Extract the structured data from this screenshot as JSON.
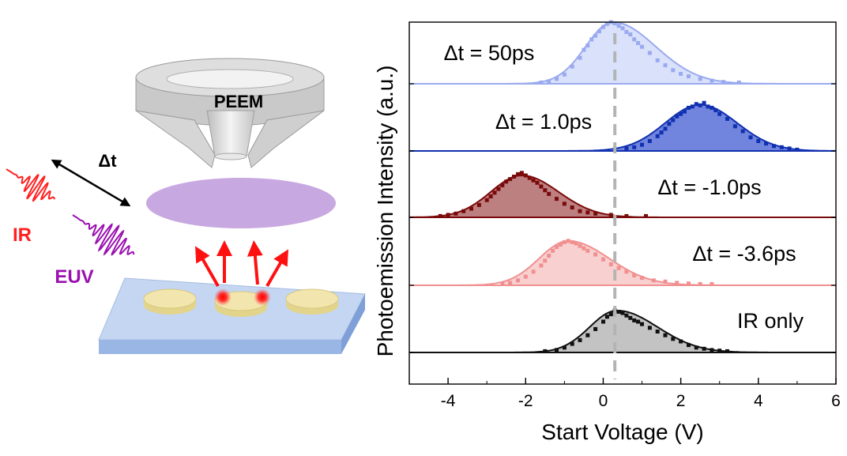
{
  "schematic": {
    "detector_label": "PEEM",
    "delay_label": "Δt",
    "pulse_ir_label": "IR",
    "pulse_euv_label": "EUV",
    "colors": {
      "detector": "#d3d3d3",
      "screen": "#c8a8e0",
      "substrate": "#c0d4f0",
      "disc": "#f0e4a8",
      "ir": "#ff2020",
      "euv": "#9a10b0",
      "arrow": "#ff1010"
    }
  },
  "chart_data": {
    "type": "area",
    "xlabel": "Start Voltage (V)",
    "ylabel": "Photoemission Intensity (a.u.)",
    "xlim": [
      -5,
      6
    ],
    "xticks": [
      -4,
      -2,
      0,
      2,
      4,
      6
    ],
    "reference_line_x": 0.3,
    "grid": false,
    "legend": "none",
    "series": [
      {
        "name": "Δt = 50ps",
        "color": "#9aaaf0",
        "fill": "#d4dcfa",
        "fit": {
          "amplitude": 1.0,
          "center": 0.25,
          "sigma_left": 0.7,
          "sigma_right": 1.1
        },
        "points": [
          [
            -1.6,
            0.02
          ],
          [
            -1.4,
            0.04
          ],
          [
            -1.2,
            0.08
          ],
          [
            -1.0,
            0.15
          ],
          [
            -0.8,
            0.28
          ],
          [
            -0.6,
            0.42
          ],
          [
            -0.5,
            0.55
          ],
          [
            -0.4,
            0.62
          ],
          [
            -0.3,
            0.72
          ],
          [
            -0.2,
            0.78
          ],
          [
            -0.1,
            0.85
          ],
          [
            0.0,
            0.92
          ],
          [
            0.1,
            0.97
          ],
          [
            0.2,
            1.0
          ],
          [
            0.3,
            0.98
          ],
          [
            0.4,
            0.94
          ],
          [
            0.5,
            0.9
          ],
          [
            0.6,
            0.84
          ],
          [
            0.7,
            0.8
          ],
          [
            0.8,
            0.72
          ],
          [
            0.9,
            0.66
          ],
          [
            1.0,
            0.6
          ],
          [
            1.2,
            0.5
          ],
          [
            1.4,
            0.38
          ],
          [
            1.6,
            0.3
          ],
          [
            1.8,
            0.22
          ],
          [
            2.0,
            0.16
          ],
          [
            2.2,
            0.12
          ],
          [
            2.5,
            0.08
          ],
          [
            2.8,
            0.05
          ],
          [
            3.1,
            0.03
          ],
          [
            3.5,
            0.02
          ]
        ]
      },
      {
        "name": "Δt = 1.0ps",
        "color": "#1030b0",
        "fill": "#5870d8",
        "fit": {
          "amplitude": 0.75,
          "center": 2.5,
          "sigma_left": 0.9,
          "sigma_right": 0.95
        },
        "points": [
          [
            0.3,
            0.02
          ],
          [
            0.6,
            0.04
          ],
          [
            0.8,
            0.06
          ],
          [
            1.0,
            0.1
          ],
          [
            1.2,
            0.16
          ],
          [
            1.4,
            0.24
          ],
          [
            1.5,
            0.3
          ],
          [
            1.6,
            0.36
          ],
          [
            1.7,
            0.44
          ],
          [
            1.8,
            0.5
          ],
          [
            1.9,
            0.56
          ],
          [
            2.0,
            0.6
          ],
          [
            2.1,
            0.64
          ],
          [
            2.2,
            0.7
          ],
          [
            2.3,
            0.72
          ],
          [
            2.4,
            0.76
          ],
          [
            2.5,
            0.74
          ],
          [
            2.6,
            0.78
          ],
          [
            2.7,
            0.72
          ],
          [
            2.8,
            0.7
          ],
          [
            2.9,
            0.66
          ],
          [
            3.0,
            0.6
          ],
          [
            3.2,
            0.52
          ],
          [
            3.4,
            0.4
          ],
          [
            3.6,
            0.32
          ],
          [
            3.8,
            0.22
          ],
          [
            4.0,
            0.16
          ],
          [
            4.2,
            0.12
          ],
          [
            4.4,
            0.08
          ],
          [
            4.6,
            0.06
          ],
          [
            4.8,
            0.04
          ],
          [
            5.0,
            0.02
          ]
        ]
      },
      {
        "name": "Δt = -1.0ps",
        "color": "#7a0a0a",
        "fill": "#b06a6a",
        "fit": {
          "amplitude": 0.68,
          "center": -2.1,
          "sigma_left": 0.8,
          "sigma_right": 0.95
        },
        "points": [
          [
            -4.2,
            0.02
          ],
          [
            -4.0,
            0.04
          ],
          [
            -3.8,
            0.06
          ],
          [
            -3.6,
            0.1
          ],
          [
            -3.4,
            0.14
          ],
          [
            -3.2,
            0.2
          ],
          [
            -3.0,
            0.28
          ],
          [
            -2.9,
            0.34
          ],
          [
            -2.8,
            0.4
          ],
          [
            -2.7,
            0.46
          ],
          [
            -2.6,
            0.52
          ],
          [
            -2.5,
            0.58
          ],
          [
            -2.4,
            0.62
          ],
          [
            -2.3,
            0.66
          ],
          [
            -2.2,
            0.7
          ],
          [
            -2.1,
            0.72
          ],
          [
            -2.0,
            0.68
          ],
          [
            -1.9,
            0.64
          ],
          [
            -1.8,
            0.6
          ],
          [
            -1.7,
            0.56
          ],
          [
            -1.6,
            0.5
          ],
          [
            -1.5,
            0.44
          ],
          [
            -1.4,
            0.38
          ],
          [
            -1.2,
            0.3
          ],
          [
            -1.0,
            0.22
          ],
          [
            -0.8,
            0.16
          ],
          [
            -0.6,
            0.1
          ],
          [
            -0.4,
            0.08
          ],
          [
            -0.2,
            0.06
          ],
          [
            0.2,
            0.04
          ],
          [
            0.6,
            0.02
          ],
          [
            1.1,
            0.02
          ]
        ]
      },
      {
        "name": "Δt = -3.6ps",
        "color": "#f09090",
        "fill": "#f8c8c8",
        "fit": {
          "amplitude": 0.72,
          "center": -0.9,
          "sigma_left": 0.75,
          "sigma_right": 1.05
        },
        "points": [
          [
            -2.6,
            0.02
          ],
          [
            -2.4,
            0.04
          ],
          [
            -2.2,
            0.08
          ],
          [
            -2.0,
            0.14
          ],
          [
            -1.8,
            0.22
          ],
          [
            -1.6,
            0.32
          ],
          [
            -1.5,
            0.4
          ],
          [
            -1.4,
            0.48
          ],
          [
            -1.3,
            0.56
          ],
          [
            -1.2,
            0.62
          ],
          [
            -1.1,
            0.66
          ],
          [
            -1.0,
            0.7
          ],
          [
            -0.9,
            0.72
          ],
          [
            -0.8,
            0.7
          ],
          [
            -0.7,
            0.68
          ],
          [
            -0.6,
            0.64
          ],
          [
            -0.5,
            0.6
          ],
          [
            -0.4,
            0.56
          ],
          [
            -0.2,
            0.5
          ],
          [
            0.0,
            0.42
          ],
          [
            0.2,
            0.34
          ],
          [
            0.4,
            0.28
          ],
          [
            0.6,
            0.22
          ],
          [
            0.8,
            0.16
          ],
          [
            1.0,
            0.12
          ],
          [
            1.3,
            0.08
          ],
          [
            1.6,
            0.06
          ],
          [
            1.9,
            0.04
          ],
          [
            2.2,
            0.03
          ],
          [
            2.5,
            0.02
          ],
          [
            2.8,
            0.02
          ]
        ]
      },
      {
        "name": "IR only",
        "color": "#101010",
        "fill": "#b8b8b8",
        "fit": {
          "amplitude": 0.68,
          "center": 0.35,
          "sigma_left": 0.7,
          "sigma_right": 1.05
        },
        "points": [
          [
            -1.5,
            0.02
          ],
          [
            -1.2,
            0.04
          ],
          [
            -1.0,
            0.08
          ],
          [
            -0.8,
            0.14
          ],
          [
            -0.6,
            0.2
          ],
          [
            -0.4,
            0.28
          ],
          [
            -0.2,
            0.38
          ],
          [
            0.0,
            0.5
          ],
          [
            0.1,
            0.58
          ],
          [
            0.2,
            0.62
          ],
          [
            0.3,
            0.68
          ],
          [
            0.4,
            0.66
          ],
          [
            0.5,
            0.64
          ],
          [
            0.6,
            0.6
          ],
          [
            0.7,
            0.56
          ],
          [
            0.8,
            0.52
          ],
          [
            0.9,
            0.5
          ],
          [
            1.0,
            0.46
          ],
          [
            1.2,
            0.4
          ],
          [
            1.4,
            0.34
          ],
          [
            1.6,
            0.28
          ],
          [
            1.8,
            0.22
          ],
          [
            2.0,
            0.18
          ],
          [
            2.2,
            0.12
          ],
          [
            2.4,
            0.08
          ],
          [
            2.6,
            0.06
          ],
          [
            2.8,
            0.04
          ],
          [
            3.0,
            0.03
          ],
          [
            3.2,
            0.02
          ]
        ]
      }
    ]
  }
}
